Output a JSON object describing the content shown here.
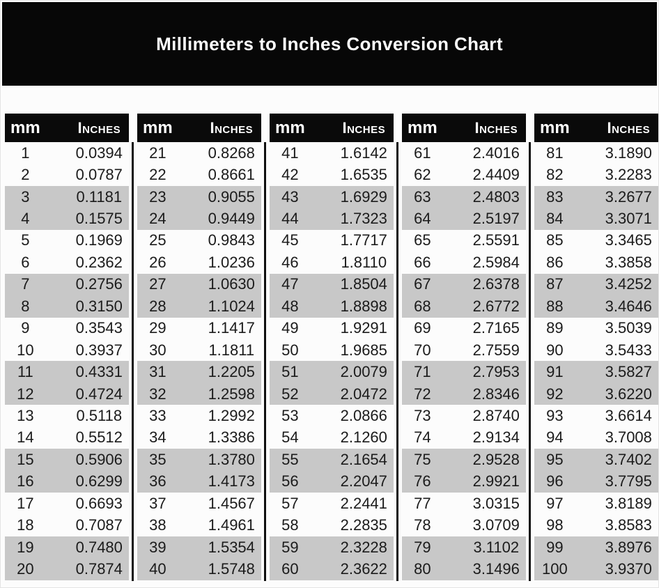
{
  "chart_data": {
    "type": "table",
    "title": "Millimeters to Inches Conversion Chart",
    "columns": [
      "mm",
      "Inches"
    ],
    "stripe_pattern": "two white rows alternating with two gray rows",
    "groups": [
      {
        "rows": [
          [
            "1",
            "0.0394"
          ],
          [
            "2",
            "0.0787"
          ],
          [
            "3",
            "0.1181"
          ],
          [
            "4",
            "0.1575"
          ],
          [
            "5",
            "0.1969"
          ],
          [
            "6",
            "0.2362"
          ],
          [
            "7",
            "0.2756"
          ],
          [
            "8",
            "0.3150"
          ],
          [
            "9",
            "0.3543"
          ],
          [
            "10",
            "0.3937"
          ],
          [
            "11",
            "0.4331"
          ],
          [
            "12",
            "0.4724"
          ],
          [
            "13",
            "0.5118"
          ],
          [
            "14",
            "0.5512"
          ],
          [
            "15",
            "0.5906"
          ],
          [
            "16",
            "0.6299"
          ],
          [
            "17",
            "0.6693"
          ],
          [
            "18",
            "0.7087"
          ],
          [
            "19",
            "0.7480"
          ],
          [
            "20",
            "0.7874"
          ]
        ]
      },
      {
        "rows": [
          [
            "21",
            "0.8268"
          ],
          [
            "22",
            "0.8661"
          ],
          [
            "23",
            "0.9055"
          ],
          [
            "24",
            "0.9449"
          ],
          [
            "25",
            "0.9843"
          ],
          [
            "26",
            "1.0236"
          ],
          [
            "27",
            "1.0630"
          ],
          [
            "28",
            "1.1024"
          ],
          [
            "29",
            "1.1417"
          ],
          [
            "30",
            "1.1811"
          ],
          [
            "31",
            "1.2205"
          ],
          [
            "32",
            "1.2598"
          ],
          [
            "33",
            "1.2992"
          ],
          [
            "34",
            "1.3386"
          ],
          [
            "35",
            "1.3780"
          ],
          [
            "36",
            "1.4173"
          ],
          [
            "37",
            "1.4567"
          ],
          [
            "38",
            "1.4961"
          ],
          [
            "39",
            "1.5354"
          ],
          [
            "40",
            "1.5748"
          ]
        ]
      },
      {
        "rows": [
          [
            "41",
            "1.6142"
          ],
          [
            "42",
            "1.6535"
          ],
          [
            "43",
            "1.6929"
          ],
          [
            "44",
            "1.7323"
          ],
          [
            "45",
            "1.7717"
          ],
          [
            "46",
            "1.8110"
          ],
          [
            "47",
            "1.8504"
          ],
          [
            "48",
            "1.8898"
          ],
          [
            "49",
            "1.9291"
          ],
          [
            "50",
            "1.9685"
          ],
          [
            "51",
            "2.0079"
          ],
          [
            "52",
            "2.0472"
          ],
          [
            "53",
            "2.0866"
          ],
          [
            "54",
            "2.1260"
          ],
          [
            "55",
            "2.1654"
          ],
          [
            "56",
            "2.2047"
          ],
          [
            "57",
            "2.2441"
          ],
          [
            "58",
            "2.2835"
          ],
          [
            "59",
            "2.3228"
          ],
          [
            "60",
            "2.3622"
          ]
        ]
      },
      {
        "rows": [
          [
            "61",
            "2.4016"
          ],
          [
            "62",
            "2.4409"
          ],
          [
            "63",
            "2.4803"
          ],
          [
            "64",
            "2.5197"
          ],
          [
            "65",
            "2.5591"
          ],
          [
            "66",
            "2.5984"
          ],
          [
            "67",
            "2.6378"
          ],
          [
            "68",
            "2.6772"
          ],
          [
            "69",
            "2.7165"
          ],
          [
            "70",
            "2.7559"
          ],
          [
            "71",
            "2.7953"
          ],
          [
            "72",
            "2.8346"
          ],
          [
            "73",
            "2.8740"
          ],
          [
            "74",
            "2.9134"
          ],
          [
            "75",
            "2.9528"
          ],
          [
            "76",
            "2.9921"
          ],
          [
            "77",
            "3.0315"
          ],
          [
            "78",
            "3.0709"
          ],
          [
            "79",
            "3.1102"
          ],
          [
            "80",
            "3.1496"
          ]
        ]
      },
      {
        "rows": [
          [
            "81",
            "3.1890"
          ],
          [
            "82",
            "3.2283"
          ],
          [
            "83",
            "3.2677"
          ],
          [
            "84",
            "3.3071"
          ],
          [
            "85",
            "3.3465"
          ],
          [
            "86",
            "3.3858"
          ],
          [
            "87",
            "3.4252"
          ],
          [
            "88",
            "3.4646"
          ],
          [
            "89",
            "3.5039"
          ],
          [
            "90",
            "3.5433"
          ],
          [
            "91",
            "3.5827"
          ],
          [
            "92",
            "3.6220"
          ],
          [
            "93",
            "3.6614"
          ],
          [
            "94",
            "3.7008"
          ],
          [
            "95",
            "3.7402"
          ],
          [
            "96",
            "3.7795"
          ],
          [
            "97",
            "3.8189"
          ],
          [
            "98",
            "3.8583"
          ],
          [
            "99",
            "3.8976"
          ],
          [
            "100",
            "3.9370"
          ]
        ]
      }
    ]
  },
  "colors": {
    "banner_bg": "#070707",
    "header_bg": "#0a0a0a",
    "stripe_gray": "#c8c8c8",
    "divider": "#101010",
    "page_bg": "#fcfcfc",
    "title_text": "#ffffff",
    "data_text": "#1b1b1b"
  }
}
